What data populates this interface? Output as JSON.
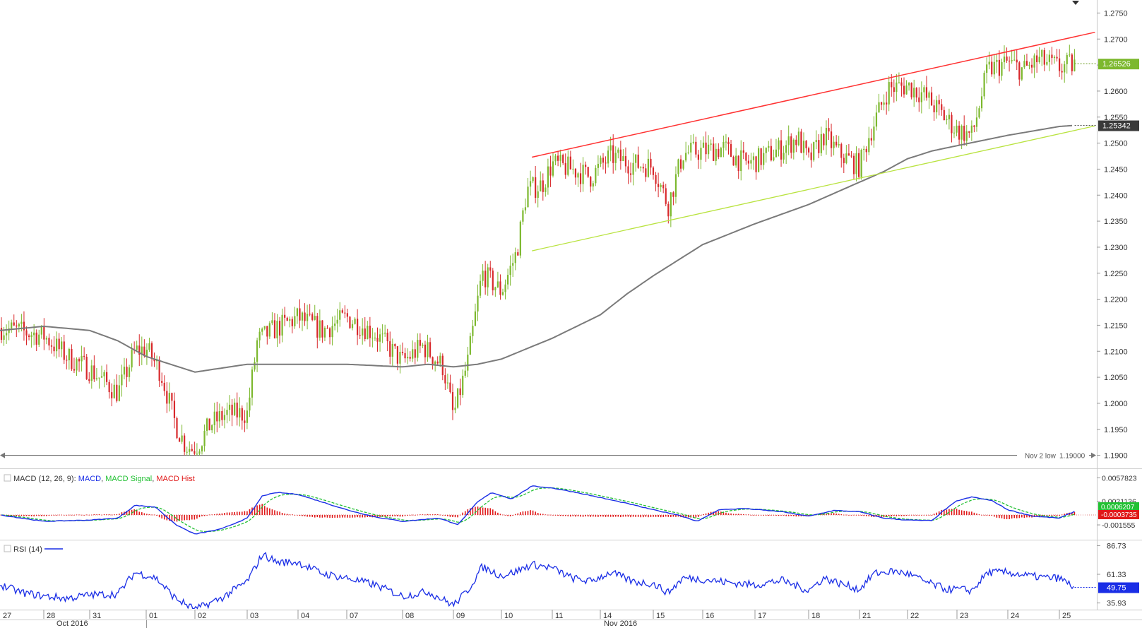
{
  "chart_data": {
    "type": "candlestick",
    "instrument_price": "1.26526",
    "price_axis": {
      "ylim": [
        1.1875,
        1.2775
      ],
      "tick_labels": [
        "1.2750",
        "1.2700",
        "1.2650",
        "1.2600",
        "1.2550",
        "1.2500",
        "1.2450",
        "1.2400",
        "1.2350",
        "1.2300",
        "1.2250",
        "1.2200",
        "1.2150",
        "1.2100",
        "1.2050",
        "1.2000",
        "1.1950",
        "1.1900"
      ],
      "ticks": [
        1.275,
        1.27,
        1.265,
        1.26,
        1.255,
        1.25,
        1.245,
        1.24,
        1.235,
        1.23,
        1.225,
        1.22,
        1.215,
        1.21,
        1.205,
        1.2,
        1.195,
        1.19
      ]
    },
    "x_axis": {
      "days": [
        "27",
        "28",
        "31",
        "01",
        "02",
        "03",
        "04",
        "07",
        "08",
        "09",
        "10",
        "11",
        "14",
        "15",
        "16",
        "17",
        "18",
        "21",
        "22",
        "23",
        "24",
        "25"
      ],
      "months": [
        "Oct 2016",
        "Nov 2016"
      ]
    },
    "price_series": {
      "name": "price",
      "anchors": [
        [
          0,
          1.2145
        ],
        [
          1,
          1.213
        ],
        [
          1.5,
          1.209
        ],
        [
          2,
          1.2065
        ],
        [
          2.5,
          1.202
        ],
        [
          2.8,
          1.21
        ],
        [
          3,
          1.2105
        ],
        [
          3.3,
          1.206
        ],
        [
          3.6,
          1.196
        ],
        [
          3.8,
          1.192
        ],
        [
          4,
          1.191
        ],
        [
          4.3,
          1.196
        ],
        [
          4.6,
          1.198
        ],
        [
          5,
          1.198
        ],
        [
          5.2,
          1.212
        ],
        [
          5.5,
          1.214
        ],
        [
          6,
          1.2165
        ],
        [
          6.5,
          1.214
        ],
        [
          7,
          1.2165
        ],
        [
          7.5,
          1.2135
        ],
        [
          8,
          1.208
        ],
        [
          8.4,
          1.211
        ],
        [
          8.8,
          1.207
        ],
        [
          9,
          1.1975
        ],
        [
          9.3,
          1.208
        ],
        [
          9.6,
          1.225
        ],
        [
          10,
          1.2215
        ],
        [
          10.3,
          1.229
        ],
        [
          10.5,
          1.241
        ],
        [
          10.8,
          1.242
        ],
        [
          11,
          1.246
        ],
        [
          11.4,
          1.245
        ],
        [
          11.8,
          1.2435
        ],
        [
          12.2,
          1.2475
        ],
        [
          12.6,
          1.246
        ],
        [
          13,
          1.2455
        ],
        [
          13.3,
          1.238
        ],
        [
          13.6,
          1.248
        ],
        [
          14,
          1.2485
        ],
        [
          14.4,
          1.249
        ],
        [
          14.8,
          1.246
        ],
        [
          15,
          1.2465
        ],
        [
          15.5,
          1.249
        ],
        [
          15.8,
          1.251
        ],
        [
          16,
          1.2465
        ],
        [
          16.3,
          1.2515
        ],
        [
          16.6,
          1.248
        ],
        [
          17,
          1.2455
        ],
        [
          17.2,
          1.2515
        ],
        [
          17.6,
          1.2605
        ],
        [
          18,
          1.261
        ],
        [
          18.3,
          1.2595
        ],
        [
          18.6,
          1.2565
        ],
        [
          19,
          1.2525
        ],
        [
          19.3,
          1.2515
        ],
        [
          19.6,
          1.264
        ],
        [
          20,
          1.2655
        ],
        [
          20.3,
          1.264
        ],
        [
          20.6,
          1.266
        ],
        [
          21,
          1.2645
        ],
        [
          21.3,
          1.2652
        ]
      ],
      "y_range": [
        1.19,
        1.2697
      ],
      "last": 1.26526
    },
    "moving_average": {
      "name": "moving average",
      "label": "1.25342",
      "points": [
        [
          0,
          1.214
        ],
        [
          1,
          1.2148
        ],
        [
          2,
          1.214
        ],
        [
          2.5,
          1.212
        ],
        [
          3,
          1.209
        ],
        [
          4,
          1.206
        ],
        [
          5,
          1.2075
        ],
        [
          6,
          1.2075
        ],
        [
          7,
          1.2075
        ],
        [
          8,
          1.207
        ],
        [
          8.5,
          1.2075
        ],
        [
          9,
          1.207
        ],
        [
          9.5,
          1.2075
        ],
        [
          10,
          1.2085
        ],
        [
          10.5,
          1.2105
        ],
        [
          11,
          1.2125
        ],
        [
          12,
          1.217
        ],
        [
          12.5,
          1.221
        ],
        [
          13,
          1.2245
        ],
        [
          14,
          1.2305
        ],
        [
          15,
          1.2345
        ],
        [
          16,
          1.2382
        ],
        [
          17,
          1.2425
        ],
        [
          17.5,
          1.2445
        ],
        [
          18,
          1.247
        ],
        [
          18.5,
          1.2485
        ],
        [
          19,
          1.2495
        ],
        [
          19.5,
          1.2505
        ],
        [
          20,
          1.2515
        ],
        [
          21,
          1.2532
        ],
        [
          21.3,
          1.2534
        ]
      ]
    },
    "support_line": {
      "name": "support trendline",
      "from": [
        10.6,
        1.2293
      ],
      "to": [
        21.7,
        1.2533
      ]
    },
    "resistance_line": {
      "name": "resistance trendline",
      "from": [
        10.6,
        1.2473
      ],
      "to": [
        21.7,
        1.2713
      ]
    },
    "horizontal_level": {
      "name": "Nov 2 low",
      "label": "Nov 2 low",
      "value_label": "1.19000",
      "value": 1.19
    },
    "macd": {
      "title": "MACD (12, 26, 9):",
      "legend": [
        {
          "name": "MACD",
          "color": "#1a2ee6"
        },
        {
          "name": "MACD Signal",
          "color": "#22c033"
        },
        {
          "name": "MACD Hist",
          "color": "#e01818"
        }
      ],
      "ylim": [
        -0.0032,
        0.0066
      ],
      "tick_labels": [
        "0.0057823",
        "0.0021136",
        "-0.001555"
      ],
      "ticks": [
        0.0057823,
        0.0021136,
        -0.001555
      ],
      "macd_anchors": [
        [
          0,
          0
        ],
        [
          0.5,
          -0.0005
        ],
        [
          1,
          -0.001
        ],
        [
          2,
          -0.0008
        ],
        [
          2.5,
          -0.0005
        ],
        [
          2.8,
          0.0015
        ],
        [
          3.2,
          0.0012
        ],
        [
          3.6,
          -0.0015
        ],
        [
          4,
          -0.003
        ],
        [
          4.5,
          -0.0022
        ],
        [
          5,
          -0.0005
        ],
        [
          5.3,
          0.003
        ],
        [
          5.6,
          0.0035
        ],
        [
          6,
          0.0032
        ],
        [
          6.5,
          0.002
        ],
        [
          7,
          0.0008
        ],
        [
          7.5,
          -0.0003
        ],
        [
          8,
          -0.001
        ],
        [
          8.7,
          -0.0005
        ],
        [
          9.1,
          -0.0015
        ],
        [
          9.5,
          0.002
        ],
        [
          9.8,
          0.0035
        ],
        [
          10.2,
          0.0025
        ],
        [
          10.6,
          0.0045
        ],
        [
          11,
          0.0042
        ],
        [
          11.5,
          0.0035
        ],
        [
          12,
          0.0027
        ],
        [
          12.5,
          0.0018
        ],
        [
          13,
          0.0008
        ],
        [
          13.5,
          0.0
        ],
        [
          13.9,
          -0.001
        ],
        [
          14.3,
          0.0008
        ],
        [
          14.8,
          0.001
        ],
        [
          15.5,
          0.0005
        ],
        [
          16,
          -0.0002
        ],
        [
          16.5,
          0.0007
        ],
        [
          17,
          0.0005
        ],
        [
          17.5,
          -0.0005
        ],
        [
          18,
          -0.0008
        ],
        [
          18.5,
          -0.0009
        ],
        [
          18.7,
          0.0005
        ],
        [
          19,
          0.0022
        ],
        [
          19.3,
          0.0028
        ],
        [
          19.7,
          0.0022
        ],
        [
          20,
          0.0008
        ],
        [
          20.5,
          -0.0002
        ],
        [
          21,
          -0.0005
        ],
        [
          21.4,
          0.0009
        ],
        [
          21.8,
          0.0012
        ],
        [
          22.3,
          0.0008
        ],
        [
          23,
          0.0005
        ],
        [
          23.5,
          0.0002
        ]
      ],
      "last_macd": "0.0006207",
      "last_signal": "-0.0003735"
    },
    "rsi": {
      "title": "RSI (14)",
      "color": "#1a2ee6",
      "ylim": [
        30,
        92
      ],
      "tick_labels": [
        "86.73",
        "61.33",
        "35.93"
      ],
      "ticks": [
        86.73,
        61.33,
        35.93
      ],
      "anchors": [
        [
          0,
          52
        ],
        [
          0.5,
          45
        ],
        [
          1,
          42
        ],
        [
          1.5,
          40
        ],
        [
          2,
          43
        ],
        [
          2.5,
          44
        ],
        [
          2.8,
          63
        ],
        [
          3.2,
          58
        ],
        [
          3.6,
          40
        ],
        [
          4,
          30
        ],
        [
          4.5,
          40
        ],
        [
          5,
          55
        ],
        [
          5.3,
          79
        ],
        [
          5.6,
          72
        ],
        [
          6,
          72
        ],
        [
          6.5,
          62
        ],
        [
          7,
          58
        ],
        [
          7.5,
          52
        ],
        [
          8,
          42
        ],
        [
          8.5,
          46
        ],
        [
          9,
          34
        ],
        [
          9.3,
          47
        ],
        [
          9.6,
          68
        ],
        [
          10,
          60
        ],
        [
          10.3,
          64
        ],
        [
          10.6,
          70
        ],
        [
          11,
          67
        ],
        [
          11.4,
          58
        ],
        [
          11.8,
          55
        ],
        [
          12.2,
          63
        ],
        [
          12.6,
          55
        ],
        [
          13,
          53
        ],
        [
          13.3,
          45
        ],
        [
          13.6,
          58
        ],
        [
          14,
          57
        ],
        [
          14.5,
          54
        ],
        [
          15,
          52
        ],
        [
          15.5,
          56
        ],
        [
          16,
          47
        ],
        [
          16.3,
          58
        ],
        [
          16.7,
          52
        ],
        [
          17,
          48
        ],
        [
          17.3,
          62
        ],
        [
          17.7,
          64
        ],
        [
          18,
          62
        ],
        [
          18.4,
          54
        ],
        [
          18.8,
          48
        ],
        [
          19,
          48
        ],
        [
          19.3,
          47
        ],
        [
          19.6,
          63
        ],
        [
          20,
          63
        ],
        [
          20.4,
          60
        ],
        [
          20.8,
          58
        ],
        [
          21,
          58
        ],
        [
          21.3,
          49.75
        ]
      ],
      "last": "49.75"
    }
  }
}
